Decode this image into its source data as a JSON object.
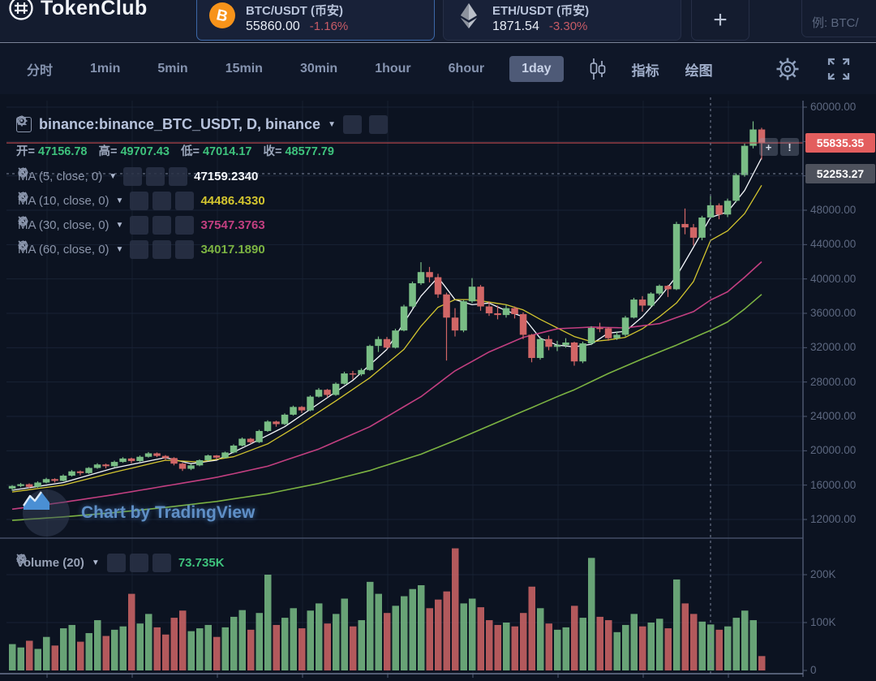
{
  "header": {
    "logo_text": "TokenClub",
    "pairs": [
      {
        "symbol": "BTC/USDT (币安)",
        "price": "55860.00",
        "change": "-1.16%",
        "selected": true
      },
      {
        "symbol": "ETH/USDT (币安)",
        "price": "1871.54",
        "change": "-3.30%",
        "selected": false
      }
    ],
    "add_button_label": "+",
    "search_placeholder": "例: BTC/"
  },
  "toolbar": {
    "timeframes": [
      {
        "label": "分时",
        "active": false
      },
      {
        "label": "1min",
        "active": false
      },
      {
        "label": "5min",
        "active": false
      },
      {
        "label": "15min",
        "active": false
      },
      {
        "label": "30min",
        "active": false
      },
      {
        "label": "1hour",
        "active": false
      },
      {
        "label": "6hour",
        "active": false
      },
      {
        "label": "1day",
        "active": true
      }
    ],
    "indicators_label": "指标",
    "drawing_label": "绘图"
  },
  "legend": {
    "title": "binance:binance_BTC_USDT, D, binance",
    "ohlc": {
      "open_label": "开=",
      "open": "47156.78",
      "high_label": "高=",
      "high": "49707.43",
      "low_label": "低=",
      "low": "47014.17",
      "close_label": "收=",
      "close": "48577.79"
    },
    "ma_indicators": [
      {
        "label": "MA (5, close, 0)",
        "value": "47159.2340",
        "color": "#f4f7fb"
      },
      {
        "label": "MA (10, close, 0)",
        "value": "44486.4330",
        "color": "#d3c52f"
      },
      {
        "label": "MA (30, close, 0)",
        "value": "37547.3763",
        "color": "#c23f80"
      },
      {
        "label": "MA (60, close, 0)",
        "value": "34017.1890",
        "color": "#7cb342"
      }
    ]
  },
  "attribution": "Chart by TradingView",
  "volume_legend": {
    "label": "Volume (20)",
    "value": "73.735K"
  },
  "price_labels": {
    "last": "55835.35",
    "crosshair": "52253.27"
  },
  "quick_buttons": {
    "plus": "+",
    "alert": "!"
  },
  "colors": {
    "up": "#79bd85",
    "down": "#d16666",
    "last_price_bg": "#e35e5e",
    "crosshair_bg": "#4d515c",
    "accent_blue": "#3c68a8",
    "btc_orange": "#f7931a",
    "green_value": "#3ec27c",
    "change_red": "#c75b66"
  },
  "chart_data": {
    "type": "candlestick",
    "title": "binance:binance_BTC_USDT, D, binance",
    "grid": true,
    "price_axis": {
      "ticks": [
        60000,
        56000,
        52000,
        48000,
        44000,
        40000,
        36000,
        32000,
        28000,
        24000,
        20000,
        16000,
        12000
      ],
      "range": [
        11000,
        61500
      ]
    },
    "volume_axis": {
      "ticks": [
        200000,
        100000,
        0
      ],
      "tick_labels": [
        "200K",
        "100K",
        "0"
      ]
    },
    "last_price": 55835.35,
    "crosshair": {
      "index": 82,
      "price": 52253.27
    },
    "ohlc_at_crosshair": {
      "open": 47156.78,
      "high": 49707.43,
      "low": 47014.17,
      "close": 48577.79
    },
    "candles": [
      [
        15600,
        16000,
        15350,
        15900
      ],
      [
        15900,
        16250,
        15750,
        16100
      ],
      [
        16100,
        16200,
        15650,
        15800
      ],
      [
        15800,
        16450,
        15700,
        16300
      ],
      [
        16300,
        16850,
        16200,
        16700
      ],
      [
        16700,
        16800,
        16300,
        16500
      ],
      [
        16500,
        17250,
        16450,
        17100
      ],
      [
        17100,
        17750,
        17000,
        17600
      ],
      [
        17600,
        17700,
        17150,
        17400
      ],
      [
        17400,
        18100,
        17300,
        18000
      ],
      [
        18000,
        18550,
        17900,
        18400
      ],
      [
        18400,
        18500,
        17950,
        18200
      ],
      [
        18200,
        18850,
        18100,
        18700
      ],
      [
        18700,
        19250,
        18600,
        19100
      ],
      [
        19100,
        19200,
        18550,
        18800
      ],
      [
        18800,
        19450,
        18700,
        19300
      ],
      [
        19300,
        19850,
        19200,
        19700
      ],
      [
        19700,
        19800,
        19250,
        19400
      ],
      [
        19400,
        19500,
        18900,
        19150
      ],
      [
        19150,
        19250,
        18300,
        18500
      ],
      [
        18500,
        18600,
        17650,
        17900
      ],
      [
        17900,
        18450,
        17750,
        18300
      ],
      [
        18300,
        19000,
        18200,
        18900
      ],
      [
        18900,
        19550,
        18800,
        19450
      ],
      [
        19450,
        19500,
        18950,
        19200
      ],
      [
        19200,
        19900,
        19100,
        19800
      ],
      [
        19800,
        20750,
        19700,
        20600
      ],
      [
        20600,
        21550,
        20500,
        21400
      ],
      [
        21400,
        21500,
        20800,
        21000
      ],
      [
        21000,
        22450,
        20900,
        22300
      ],
      [
        22300,
        23550,
        22200,
        23400
      ],
      [
        23400,
        23500,
        22800,
        23100
      ],
      [
        23100,
        24350,
        23000,
        24200
      ],
      [
        24200,
        25250,
        24100,
        25100
      ],
      [
        25100,
        25200,
        24400,
        24700
      ],
      [
        24700,
        26450,
        24600,
        26300
      ],
      [
        26300,
        27300,
        26200,
        27100
      ],
      [
        27100,
        27200,
        26200,
        26500
      ],
      [
        26500,
        27950,
        26400,
        27800
      ],
      [
        27800,
        29200,
        27700,
        29000
      ],
      [
        29000,
        29300,
        28300,
        28900
      ],
      [
        28900,
        29600,
        28700,
        29400
      ],
      [
        29400,
        32350,
        29300,
        32200
      ],
      [
        32200,
        33300,
        31500,
        33000
      ],
      [
        33000,
        33250,
        31800,
        32000
      ],
      [
        32000,
        34200,
        31900,
        34000
      ],
      [
        34000,
        37000,
        33900,
        36800
      ],
      [
        36800,
        39700,
        36600,
        39500
      ],
      [
        39500,
        41950,
        39300,
        40800
      ],
      [
        40800,
        41400,
        39600,
        40200
      ],
      [
        40200,
        40600,
        37800,
        38200
      ],
      [
        38200,
        38400,
        30500,
        35500
      ],
      [
        35500,
        36600,
        33300,
        34000
      ],
      [
        34000,
        37550,
        33800,
        37400
      ],
      [
        37400,
        40100,
        37200,
        39100
      ],
      [
        39100,
        39300,
        36300,
        36800
      ],
      [
        36800,
        37400,
        35700,
        36000
      ],
      [
        36000,
        36900,
        35300,
        35800
      ],
      [
        35800,
        37000,
        35500,
        36600
      ],
      [
        36600,
        36800,
        35400,
        35900
      ],
      [
        35900,
        36100,
        33000,
        33500
      ],
      [
        33500,
        33600,
        30300,
        30800
      ],
      [
        30800,
        33300,
        30600,
        33000
      ],
      [
        33000,
        33400,
        31700,
        32100
      ],
      [
        32100,
        32800,
        31600,
        32300
      ],
      [
        32300,
        33100,
        32000,
        32600
      ],
      [
        32600,
        32700,
        29900,
        30400
      ],
      [
        30400,
        32700,
        30200,
        32500
      ],
      [
        32500,
        34500,
        32300,
        34300
      ],
      [
        34300,
        34900,
        33800,
        34250
      ],
      [
        34250,
        34400,
        32800,
        33100
      ],
      [
        33100,
        33900,
        32900,
        33500
      ],
      [
        33500,
        35700,
        33300,
        35500
      ],
      [
        35500,
        37800,
        35400,
        37600
      ],
      [
        37600,
        38000,
        36200,
        36900
      ],
      [
        36900,
        38450,
        36700,
        38300
      ],
      [
        38300,
        39350,
        38100,
        39200
      ],
      [
        39200,
        39300,
        37900,
        38800
      ],
      [
        38800,
        46650,
        38700,
        46400
      ],
      [
        46400,
        48200,
        45200,
        46000
      ],
      [
        46000,
        46400,
        43900,
        44800
      ],
      [
        44800,
        47350,
        44500,
        47150
      ],
      [
        47156.78,
        49707.43,
        47014.17,
        48577.79
      ],
      [
        48577,
        48800,
        46950,
        47500
      ],
      [
        47500,
        49350,
        47200,
        49100
      ],
      [
        49100,
        52300,
        48900,
        52100
      ],
      [
        52100,
        55750,
        51900,
        55500
      ],
      [
        55500,
        58350,
        55200,
        57400
      ],
      [
        57400,
        57600,
        53900,
        55835
      ]
    ],
    "volumes_k": [
      55,
      48,
      62,
      45,
      70,
      52,
      88,
      95,
      60,
      78,
      105,
      72,
      85,
      92,
      160,
      98,
      118,
      90,
      75,
      110,
      125,
      82,
      88,
      95,
      70,
      90,
      112,
      126,
      85,
      120,
      200,
      95,
      110,
      130,
      88,
      125,
      140,
      98,
      118,
      150,
      92,
      105,
      185,
      160,
      120,
      135,
      155,
      170,
      178,
      130,
      148,
      165,
      255,
      140,
      150,
      132,
      105,
      95,
      100,
      92,
      120,
      175,
      130,
      98,
      85,
      90,
      135,
      110,
      235,
      112,
      105,
      80,
      95,
      118,
      92,
      100,
      108,
      88,
      190,
      140,
      118,
      102,
      96,
      85,
      92,
      110,
      125,
      105,
      30
    ],
    "volume_ma_label": "Volume (20)",
    "volume_last": "73.735K",
    "ma_lines": [
      {
        "name": "MA5",
        "color": "#f4f7fb",
        "width": 1.3,
        "anchors": [
          [
            0,
            15400
          ],
          [
            6,
            16300
          ],
          [
            12,
            18000
          ],
          [
            18,
            19200
          ],
          [
            21,
            18500
          ],
          [
            24,
            18900
          ],
          [
            28,
            20800
          ],
          [
            32,
            22800
          ],
          [
            36,
            25500
          ],
          [
            40,
            28200
          ],
          [
            44,
            31800
          ],
          [
            48,
            38000
          ],
          [
            50,
            40200
          ],
          [
            52,
            37600
          ],
          [
            54,
            37000
          ],
          [
            56,
            37200
          ],
          [
            58,
            36300
          ],
          [
            60,
            35600
          ],
          [
            62,
            33100
          ],
          [
            64,
            32300
          ],
          [
            66,
            32100
          ],
          [
            68,
            32400
          ],
          [
            70,
            33700
          ],
          [
            72,
            33900
          ],
          [
            74,
            35600
          ],
          [
            76,
            37800
          ],
          [
            78,
            40300
          ],
          [
            80,
            43700
          ],
          [
            82,
            47159.23
          ],
          [
            84,
            47800
          ],
          [
            86,
            50300
          ],
          [
            88,
            54100
          ]
        ]
      },
      {
        "name": "MA10",
        "color": "#d3c52f",
        "width": 1.3,
        "anchors": [
          [
            0,
            15200
          ],
          [
            6,
            16000
          ],
          [
            12,
            17500
          ],
          [
            18,
            18900
          ],
          [
            22,
            18700
          ],
          [
            26,
            19300
          ],
          [
            30,
            20800
          ],
          [
            34,
            23200
          ],
          [
            38,
            25800
          ],
          [
            42,
            28500
          ],
          [
            46,
            31800
          ],
          [
            48,
            34500
          ],
          [
            50,
            36700
          ],
          [
            52,
            37600
          ],
          [
            54,
            37600
          ],
          [
            56,
            37300
          ],
          [
            58,
            37000
          ],
          [
            60,
            36400
          ],
          [
            62,
            35300
          ],
          [
            64,
            34300
          ],
          [
            66,
            33300
          ],
          [
            68,
            32700
          ],
          [
            70,
            32900
          ],
          [
            72,
            33200
          ],
          [
            74,
            34200
          ],
          [
            76,
            35600
          ],
          [
            78,
            37200
          ],
          [
            80,
            39700
          ],
          [
            82,
            44486.43
          ],
          [
            84,
            45600
          ],
          [
            86,
            47600
          ],
          [
            88,
            50900
          ]
        ]
      },
      {
        "name": "MA30",
        "color": "#c23f80",
        "width": 1.6,
        "anchors": [
          [
            0,
            13200
          ],
          [
            6,
            14000
          ],
          [
            12,
            14900
          ],
          [
            18,
            15900
          ],
          [
            24,
            16900
          ],
          [
            30,
            18200
          ],
          [
            36,
            20200
          ],
          [
            42,
            22800
          ],
          [
            48,
            26300
          ],
          [
            52,
            29300
          ],
          [
            56,
            31500
          ],
          [
            60,
            33200
          ],
          [
            64,
            34200
          ],
          [
            68,
            34400
          ],
          [
            72,
            34300
          ],
          [
            76,
            34800
          ],
          [
            80,
            36200
          ],
          [
            82,
            37547.38
          ],
          [
            84,
            38500
          ],
          [
            86,
            40200
          ],
          [
            88,
            42000
          ]
        ]
      },
      {
        "name": "MA60",
        "color": "#7cb342",
        "width": 1.6,
        "anchors": [
          [
            0,
            11900
          ],
          [
            6,
            12300
          ],
          [
            12,
            12800
          ],
          [
            18,
            13400
          ],
          [
            24,
            14100
          ],
          [
            30,
            15000
          ],
          [
            36,
            16200
          ],
          [
            42,
            17700
          ],
          [
            48,
            19600
          ],
          [
            52,
            21200
          ],
          [
            56,
            22900
          ],
          [
            60,
            24600
          ],
          [
            64,
            26300
          ],
          [
            66,
            27100
          ],
          [
            70,
            29000
          ],
          [
            74,
            30700
          ],
          [
            78,
            32300
          ],
          [
            82,
            34017.19
          ],
          [
            84,
            35000
          ],
          [
            86,
            36500
          ],
          [
            88,
            38200
          ]
        ]
      }
    ]
  }
}
